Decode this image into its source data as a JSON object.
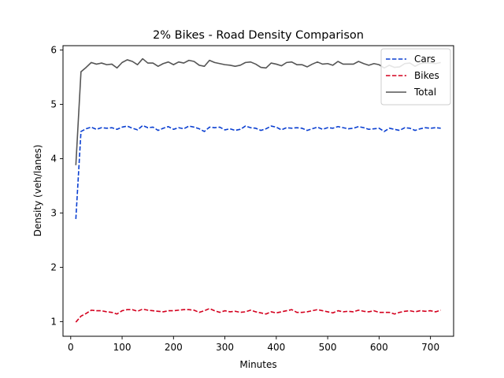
{
  "chart_data": {
    "type": "line",
    "title": "2% Bikes - Road Density Comparison",
    "xlabel": "Minutes",
    "ylabel": "Density (veh/lanes)",
    "xlim": [
      -15,
      745
    ],
    "ylim": [
      0.73,
      6.08
    ],
    "xticks": [
      0,
      100,
      200,
      300,
      400,
      500,
      600,
      700
    ],
    "yticks": [
      1,
      2,
      3,
      4,
      5,
      6
    ],
    "grid": false,
    "legend_position": "top-right",
    "x": [
      10,
      20,
      30,
      40,
      50,
      60,
      70,
      80,
      90,
      100,
      110,
      120,
      130,
      140,
      150,
      160,
      170,
      180,
      190,
      200,
      210,
      220,
      230,
      240,
      250,
      260,
      270,
      280,
      290,
      300,
      310,
      320,
      330,
      340,
      350,
      360,
      370,
      380,
      390,
      400,
      410,
      420,
      430,
      440,
      450,
      460,
      470,
      480,
      490,
      500,
      510,
      520,
      530,
      540,
      550,
      560,
      570,
      580,
      590,
      600,
      610,
      620,
      630,
      640,
      650,
      660,
      670,
      680,
      690,
      700,
      710,
      720
    ],
    "series": [
      {
        "name": "Cars",
        "color": "#0a3fd1",
        "dash": "dashed",
        "values": [
          2.89,
          4.5,
          4.55,
          4.58,
          4.54,
          4.57,
          4.56,
          4.57,
          4.54,
          4.58,
          4.6,
          4.56,
          4.53,
          4.61,
          4.57,
          4.58,
          4.52,
          4.56,
          4.59,
          4.54,
          4.57,
          4.55,
          4.6,
          4.58,
          4.55,
          4.5,
          4.58,
          4.57,
          4.58,
          4.53,
          4.55,
          4.52,
          4.54,
          4.6,
          4.57,
          4.56,
          4.52,
          4.55,
          4.6,
          4.58,
          4.53,
          4.57,
          4.56,
          4.57,
          4.56,
          4.52,
          4.55,
          4.58,
          4.54,
          4.57,
          4.56,
          4.59,
          4.57,
          4.55,
          4.56,
          4.59,
          4.57,
          4.54,
          4.55,
          4.56,
          4.5,
          4.56,
          4.54,
          4.52,
          4.57,
          4.56,
          4.52,
          4.55,
          4.57,
          4.56,
          4.57,
          4.56
        ]
      },
      {
        "name": "Bikes",
        "color": "#d4001e",
        "dash": "dashed",
        "values": [
          0.99,
          1.1,
          1.15,
          1.21,
          1.2,
          1.2,
          1.18,
          1.17,
          1.14,
          1.2,
          1.22,
          1.22,
          1.19,
          1.23,
          1.21,
          1.2,
          1.19,
          1.18,
          1.2,
          1.2,
          1.21,
          1.22,
          1.22,
          1.21,
          1.17,
          1.2,
          1.24,
          1.2,
          1.17,
          1.2,
          1.18,
          1.19,
          1.17,
          1.18,
          1.21,
          1.18,
          1.16,
          1.14,
          1.18,
          1.16,
          1.18,
          1.2,
          1.22,
          1.17,
          1.17,
          1.18,
          1.2,
          1.22,
          1.2,
          1.18,
          1.16,
          1.2,
          1.18,
          1.19,
          1.18,
          1.21,
          1.19,
          1.18,
          1.2,
          1.17,
          1.17,
          1.17,
          1.14,
          1.17,
          1.19,
          1.2,
          1.18,
          1.2,
          1.19,
          1.2,
          1.18,
          1.21
        ]
      },
      {
        "name": "Total",
        "color": "#555555",
        "dash": "solid",
        "values": [
          3.88,
          5.6,
          5.68,
          5.77,
          5.74,
          5.76,
          5.73,
          5.74,
          5.67,
          5.77,
          5.82,
          5.79,
          5.73,
          5.84,
          5.76,
          5.76,
          5.7,
          5.75,
          5.78,
          5.73,
          5.78,
          5.76,
          5.81,
          5.79,
          5.72,
          5.7,
          5.81,
          5.77,
          5.75,
          5.73,
          5.72,
          5.7,
          5.72,
          5.77,
          5.78,
          5.74,
          5.68,
          5.67,
          5.76,
          5.74,
          5.71,
          5.77,
          5.78,
          5.73,
          5.73,
          5.69,
          5.74,
          5.78,
          5.74,
          5.75,
          5.72,
          5.79,
          5.74,
          5.74,
          5.74,
          5.79,
          5.75,
          5.72,
          5.75,
          5.73,
          5.67,
          5.72,
          5.68,
          5.69,
          5.75,
          5.76,
          5.7,
          5.75,
          5.76,
          5.76,
          5.75,
          5.77
        ]
      }
    ]
  }
}
